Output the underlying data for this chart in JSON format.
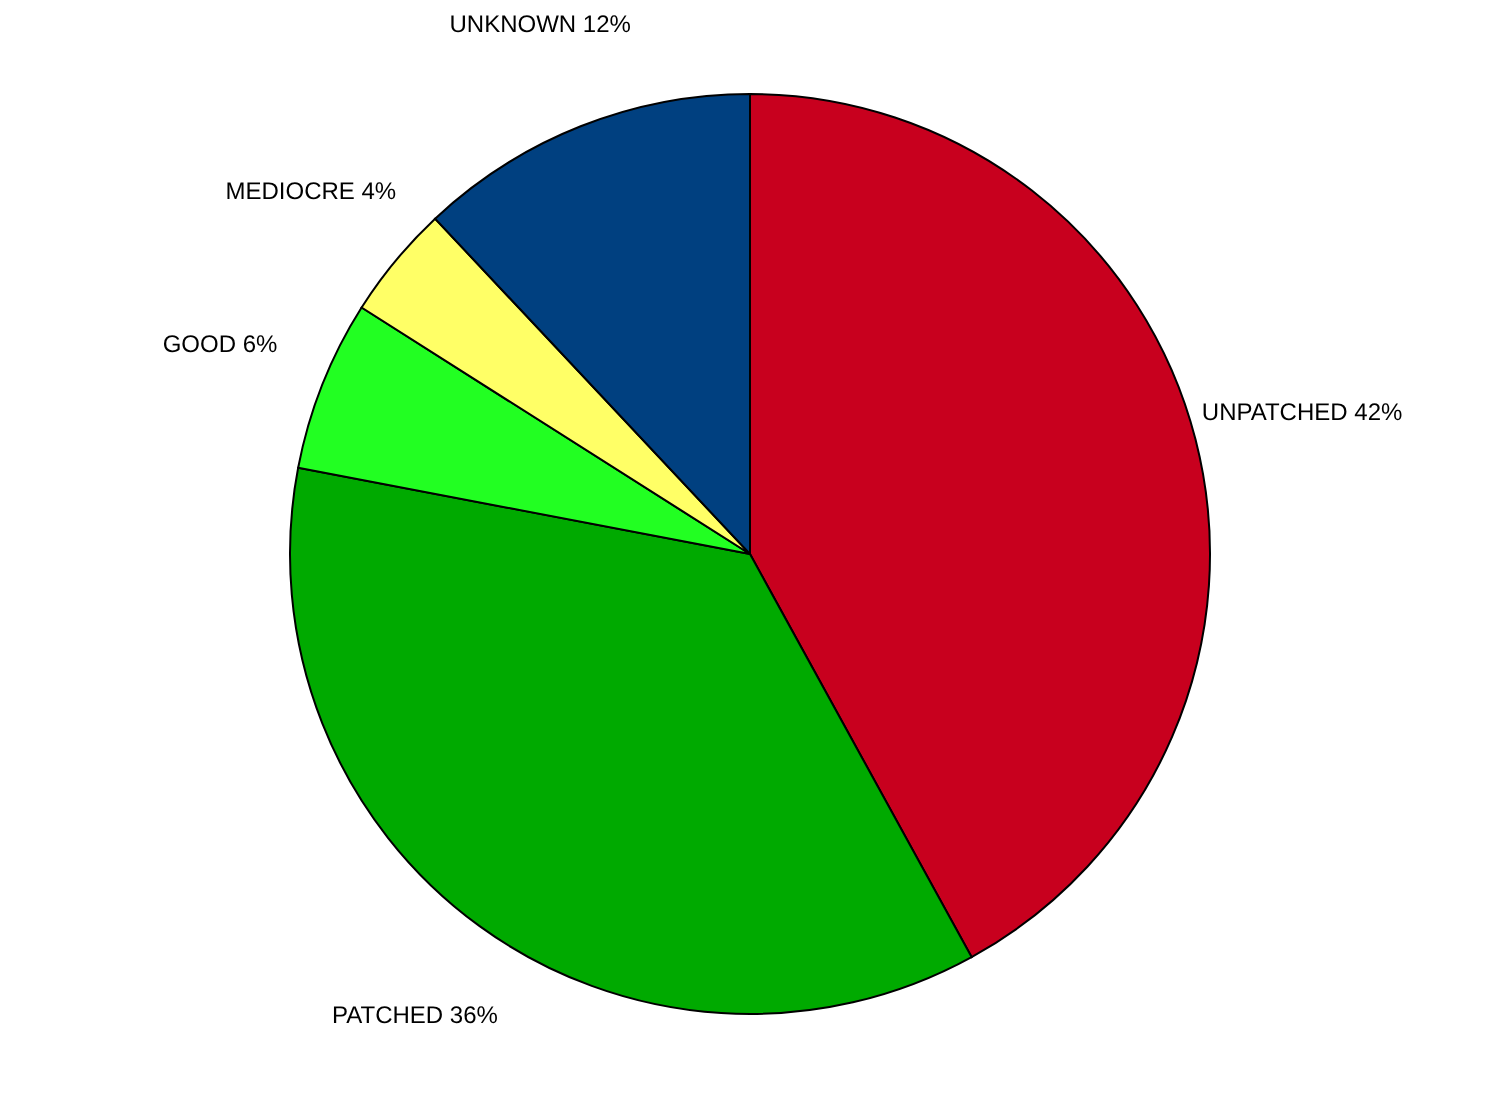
{
  "chart_data": {
    "type": "pie",
    "categories": [
      "UNPATCHED",
      "PATCHED",
      "GOOD",
      "MEDIOCRE",
      "UNKNOWN"
    ],
    "values": [
      42,
      36,
      6,
      4,
      12
    ],
    "value_labels": [
      "42%",
      "36%",
      "6%",
      "4%",
      "12%"
    ],
    "colors": [
      "#c8001e",
      "#00aa00",
      "#22ff22",
      "#ffff66",
      "#004080"
    ]
  }
}
